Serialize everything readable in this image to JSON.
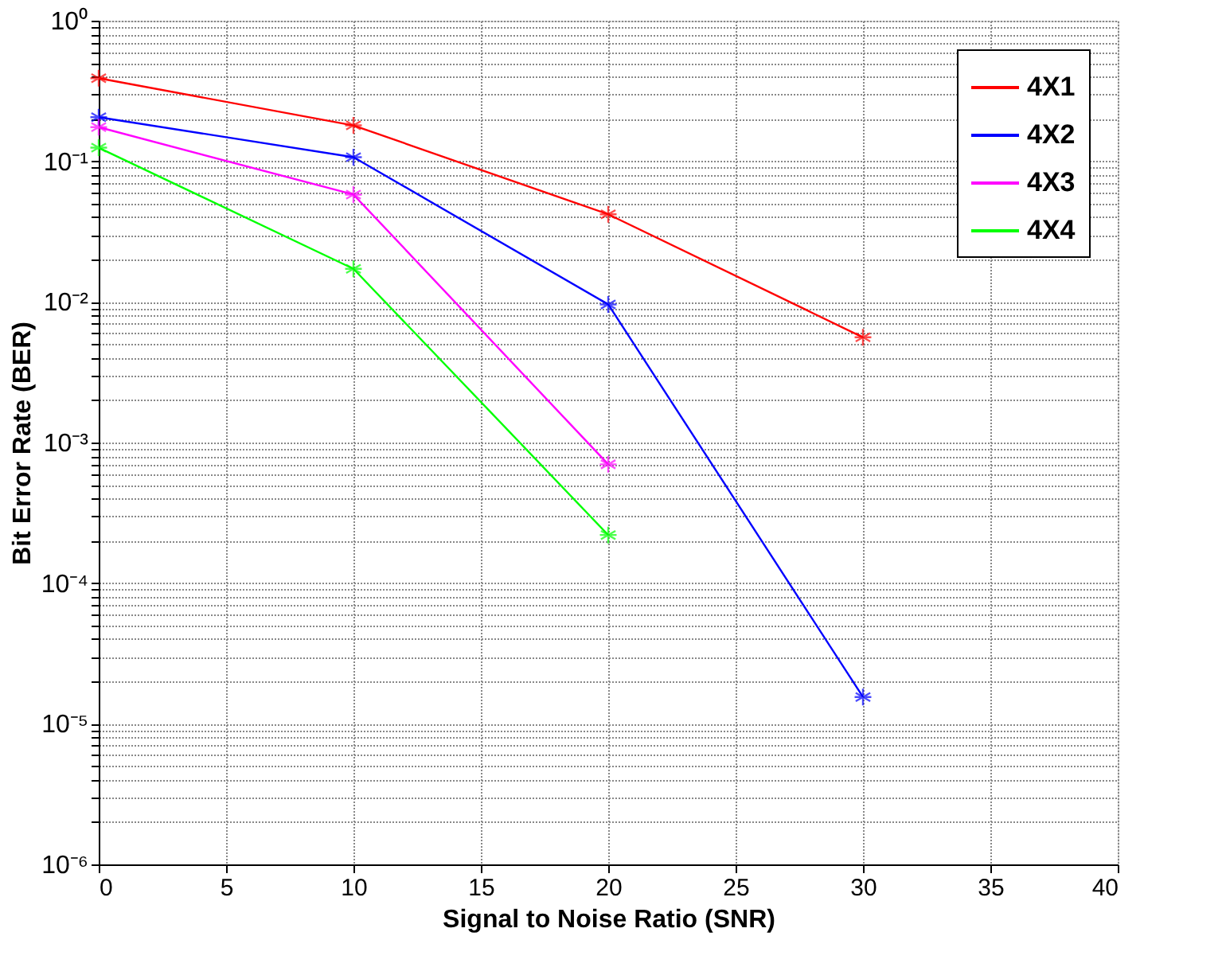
{
  "chart_data": {
    "type": "line",
    "xlabel": "Signal to Noise Ratio (SNR)",
    "ylabel": "Bit Error Rate (BER)",
    "x": [
      0,
      10,
      20,
      30
    ],
    "series": [
      {
        "name": "4X1",
        "color": "#ff0000",
        "values": [
          0.39,
          0.18,
          0.042,
          0.0056
        ]
      },
      {
        "name": "4X2",
        "color": "#0000ff",
        "values": [
          0.206,
          0.107,
          0.0096,
          1.55e-05
        ]
      },
      {
        "name": "4X3",
        "color": "#ff00ff",
        "values": [
          0.175,
          0.058,
          0.0007,
          null
        ]
      },
      {
        "name": "4X4",
        "color": "#00ff00",
        "values": [
          0.125,
          0.0172,
          0.00022,
          null
        ]
      }
    ],
    "log": "y",
    "xlim": [
      0,
      40
    ],
    "xticks": [
      0,
      5,
      10,
      15,
      20,
      25,
      30,
      35,
      40
    ],
    "ylim": [
      1e-06,
      1
    ],
    "yticks": [
      {
        "value": 1e-06,
        "label": "10⁻⁶"
      },
      {
        "value": 2e-06,
        "label": null
      },
      {
        "value": 3e-06,
        "label": null
      },
      {
        "value": 4e-06,
        "label": null
      },
      {
        "value": 5e-06,
        "label": null
      },
      {
        "value": 6e-06,
        "label": null
      },
      {
        "value": 7e-06,
        "label": null
      },
      {
        "value": 8e-06,
        "label": null
      },
      {
        "value": 9e-06,
        "label": null
      },
      {
        "value": 1e-05,
        "label": "10⁻⁵"
      },
      {
        "value": 2e-05,
        "label": null
      },
      {
        "value": 3e-05,
        "label": null
      },
      {
        "value": 4e-05,
        "label": null
      },
      {
        "value": 5e-05,
        "label": null
      },
      {
        "value": 6e-05,
        "label": null
      },
      {
        "value": 7e-05,
        "label": null
      },
      {
        "value": 8e-05,
        "label": null
      },
      {
        "value": 9e-05,
        "label": null
      },
      {
        "value": 0.0001,
        "label": "10⁻⁴"
      },
      {
        "value": 0.0002,
        "label": null
      },
      {
        "value": 0.0003,
        "label": null
      },
      {
        "value": 0.0004,
        "label": null
      },
      {
        "value": 0.0005,
        "label": null
      },
      {
        "value": 0.0006,
        "label": null
      },
      {
        "value": 0.0007,
        "label": null
      },
      {
        "value": 0.0008,
        "label": null
      },
      {
        "value": 0.0009,
        "label": null
      },
      {
        "value": 0.001,
        "label": "10⁻³"
      },
      {
        "value": 0.002,
        "label": null
      },
      {
        "value": 0.003,
        "label": null
      },
      {
        "value": 0.004,
        "label": null
      },
      {
        "value": 0.005,
        "label": null
      },
      {
        "value": 0.006,
        "label": null
      },
      {
        "value": 0.007,
        "label": null
      },
      {
        "value": 0.008,
        "label": null
      },
      {
        "value": 0.009,
        "label": null
      },
      {
        "value": 0.01,
        "label": "10⁻²"
      },
      {
        "value": 0.02,
        "label": null
      },
      {
        "value": 0.03,
        "label": null
      },
      {
        "value": 0.04,
        "label": null
      },
      {
        "value": 0.05,
        "label": null
      },
      {
        "value": 0.06,
        "label": null
      },
      {
        "value": 0.07,
        "label": null
      },
      {
        "value": 0.08,
        "label": null
      },
      {
        "value": 0.09,
        "label": null
      },
      {
        "value": 0.1,
        "label": "10⁻¹"
      },
      {
        "value": 0.2,
        "label": null
      },
      {
        "value": 0.3,
        "label": null
      },
      {
        "value": 0.4,
        "label": null
      },
      {
        "value": 0.5,
        "label": null
      },
      {
        "value": 0.6,
        "label": null
      },
      {
        "value": 0.7,
        "label": null
      },
      {
        "value": 0.8,
        "label": null
      },
      {
        "value": 0.9,
        "label": null
      },
      {
        "value": 1,
        "label": "10⁰"
      }
    ],
    "grid": true,
    "legend": "top right",
    "marker": "cross",
    "line_style": "solid"
  }
}
